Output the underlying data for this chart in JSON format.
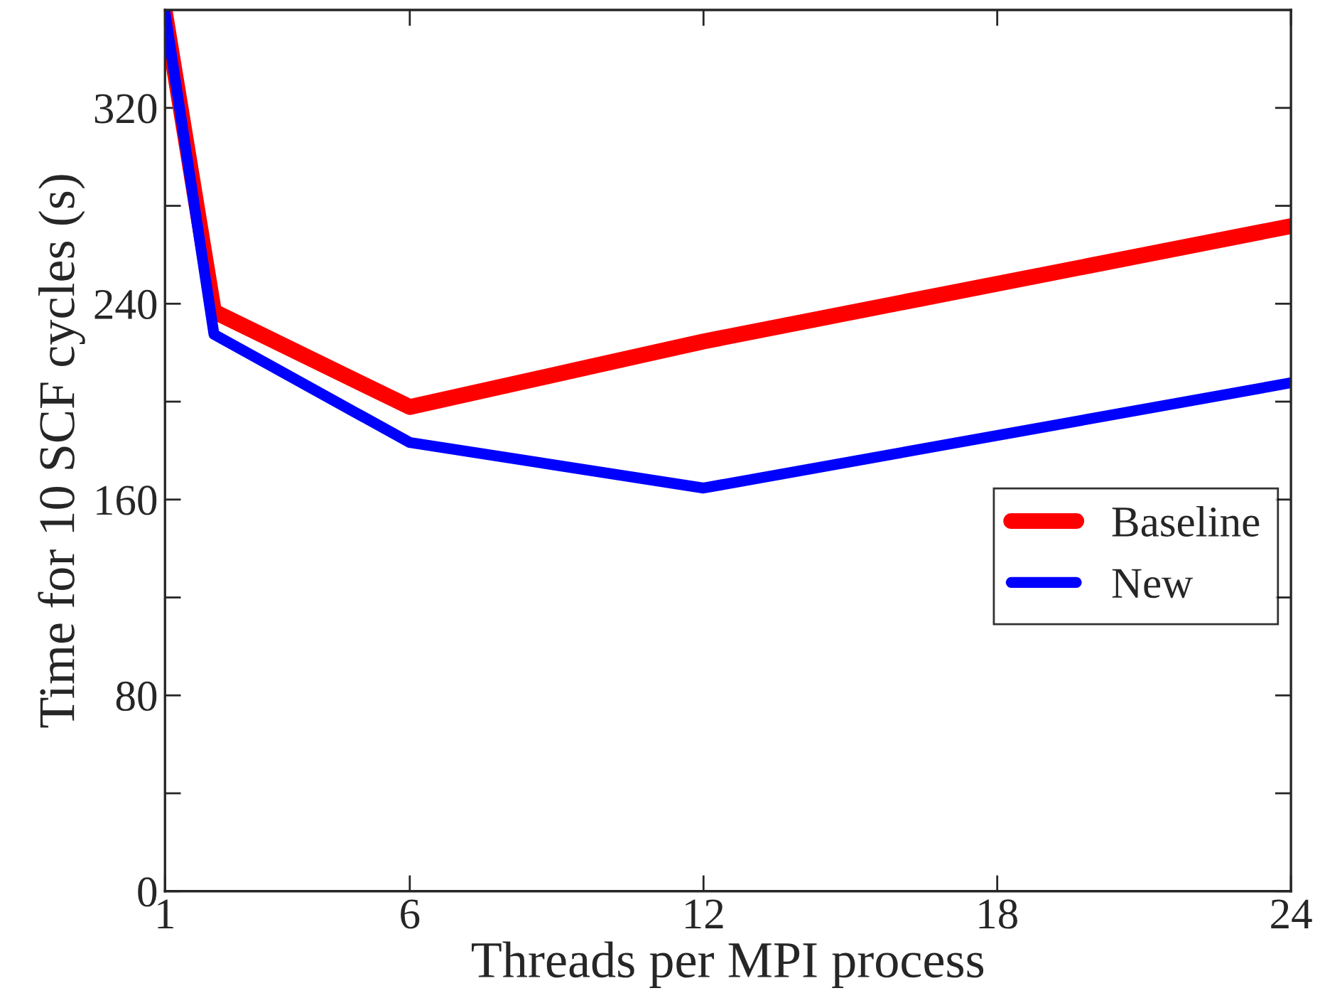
{
  "chart_data": {
    "type": "line",
    "xlabel": "Threads per MPI process",
    "ylabel": "Time for 10 SCF cycles (s)",
    "x": [
      1,
      2,
      6,
      12,
      24
    ],
    "series": [
      {
        "name": "Baseline",
        "color": "#ff0000",
        "values": [
          359,
          236.8,
          197.8,
          224.6,
          271.7
        ]
      },
      {
        "name": "New",
        "color": "#0000ff",
        "values": [
          359,
          227.5,
          183.3,
          164.7,
          207.7
        ]
      }
    ],
    "xlim": [
      1,
      24
    ],
    "ylim": [
      0,
      360
    ],
    "xticks": [
      1,
      6,
      12,
      18,
      24
    ],
    "yticks": [
      0,
      {
        "value": 40,
        "label": null
      },
      80,
      {
        "value": 120,
        "label": null
      },
      160,
      {
        "value": 200,
        "label": null
      },
      240,
      {
        "value": 280,
        "label": null
      },
      320
    ],
    "grid": false,
    "legend": "right",
    "marker": "none",
    "line_style": "solid"
  }
}
